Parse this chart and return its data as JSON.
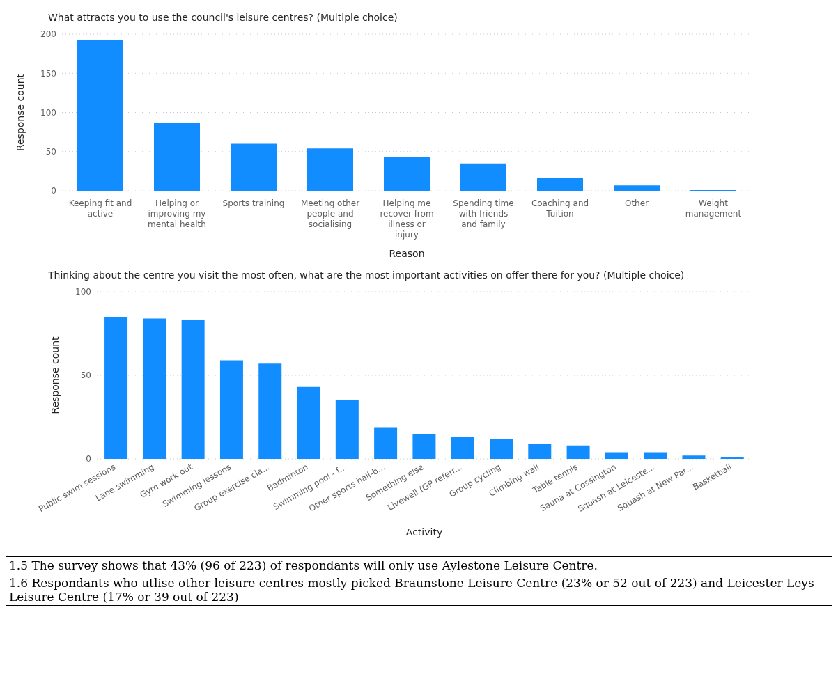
{
  "chart_data": [
    {
      "type": "bar",
      "title": "What attracts you to use the council's leisure centres? (Multiple choice)",
      "xlabel": "Reason",
      "ylabel": "Response count",
      "categories": [
        "Keeping fit and active",
        "Helping or improving my mental health",
        "Sports training",
        "Meeting other people and socialising",
        "Helping me recover from illness or injury",
        "Spending time with friends and family",
        "Coaching and Tuition",
        "Other",
        "Weight management"
      ],
      "values": [
        192,
        87,
        60,
        54,
        43,
        35,
        17,
        7,
        1
      ],
      "color": "#118dff",
      "ylim": [
        0,
        200
      ],
      "yticks": [
        0,
        50,
        100,
        150,
        200
      ],
      "grid": "y"
    },
    {
      "type": "bar",
      "title": "Thinking about the centre you visit the most often, what are the most important activities on offer there for you? (Multiple choice)",
      "xlabel": "Activity",
      "ylabel": "Response count",
      "categories": [
        "Public swim sessions",
        "Lane swimming",
        "Gym work out",
        "Swimming lessons",
        "Group exercise cla...",
        "Badminton",
        "Swimming pool - f...",
        "Other sports hall-b...",
        "Something else",
        "Livewell (GP referr...",
        "Group cycling",
        "Climbing wall",
        "Table tennis",
        "Sauna at Cossington",
        "Squash at Leiceste...",
        "Squash at New Par...",
        "Basketball"
      ],
      "values": [
        85,
        84,
        83,
        59,
        57,
        43,
        35,
        19,
        15,
        13,
        12,
        9,
        8,
        4,
        4,
        2,
        1
      ],
      "color": "#118dff",
      "ylim": [
        0,
        100
      ],
      "yticks": [
        0,
        50,
        100
      ],
      "grid": "y",
      "annotations": [
        "1.5 The survey shows that 43% (96 of 223) of respondants will only use Aylestone Leisure Centre.",
        "1.6 Respondants who utlise other leisure centres mostly picked Braunstone Leisure Centre (23% or 52 out of 223) and Leicester Leys Leisure Centre (17% or 39 out of 223)"
      ]
    }
  ]
}
